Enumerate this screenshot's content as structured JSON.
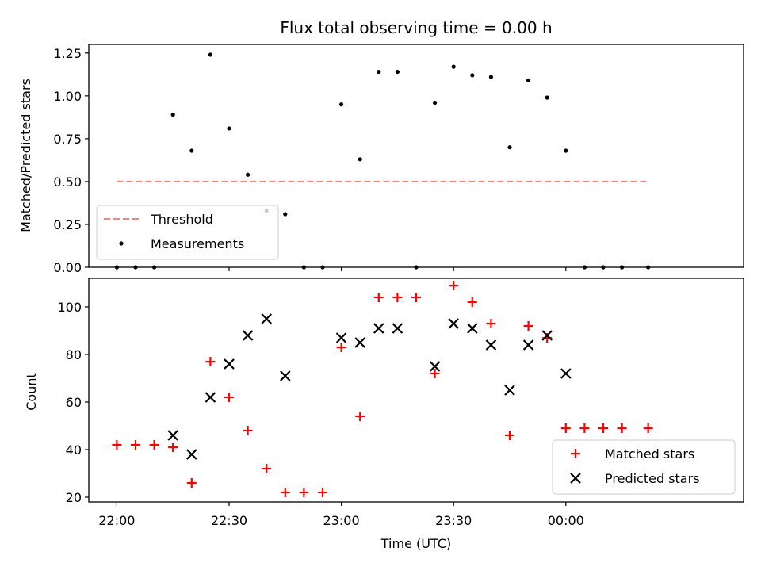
{
  "chart_data": [
    {
      "type": "scatter",
      "title": "Flux total observing time = 0.00 h",
      "xlabel": "",
      "ylabel": "Matched/Predicted stars",
      "ylim": [
        0,
        1.3
      ],
      "yticks": [
        0.0,
        0.25,
        0.5,
        0.75,
        1.0,
        1.25
      ],
      "ytick_labels": [
        "0.00",
        "0.25",
        "0.50",
        "0.75",
        "1.00",
        "1.25"
      ],
      "xlim_minutes": [
        -7.5,
        167.5
      ],
      "legend_position": "lower-left",
      "threshold": {
        "name": "Threshold",
        "y": 0.5,
        "x_from": "22:00",
        "x_to": "00:22",
        "color": "#ff7f7f"
      },
      "series": [
        {
          "name": "Measurements",
          "color": "#000000",
          "x": [
            "22:00",
            "22:05",
            "22:10",
            "22:15",
            "22:20",
            "22:25",
            "22:30",
            "22:35",
            "22:40",
            "22:45",
            "22:50",
            "22:55",
            "23:00",
            "23:05",
            "23:10",
            "23:15",
            "23:20",
            "23:25",
            "23:30",
            "23:35",
            "23:40",
            "23:45",
            "23:50",
            "23:55",
            "00:00",
            "00:05",
            "00:10",
            "00:15",
            "00:22"
          ],
          "y": [
            0,
            0,
            0,
            0.89,
            0.68,
            1.24,
            0.81,
            0.54,
            0.33,
            0.31,
            0,
            0,
            0.95,
            0.63,
            1.14,
            1.14,
            0,
            0.96,
            1.17,
            1.12,
            1.11,
            0.7,
            1.09,
            0.99,
            0.68,
            0,
            0,
            0,
            0
          ]
        }
      ]
    },
    {
      "type": "scatter",
      "title": "",
      "xlabel": "Time (UTC)",
      "ylabel": "Count",
      "ylim": [
        18,
        112
      ],
      "yticks": [
        20,
        40,
        60,
        80,
        100
      ],
      "ytick_labels": [
        "20",
        "40",
        "60",
        "80",
        "100"
      ],
      "xticks": [
        "22:00",
        "22:30",
        "23:00",
        "23:30",
        "00:00"
      ],
      "legend_position": "lower-right",
      "series": [
        {
          "name": "Matched stars",
          "marker": "plus",
          "color": "#ff0000",
          "x": [
            "22:00",
            "22:05",
            "22:10",
            "22:15",
            "22:20",
            "22:25",
            "22:30",
            "22:35",
            "22:40",
            "22:45",
            "22:50",
            "22:55",
            "23:00",
            "23:05",
            "23:10",
            "23:15",
            "23:20",
            "23:25",
            "23:30",
            "23:35",
            "23:40",
            "23:45",
            "23:50",
            "23:55",
            "00:00",
            "00:05",
            "00:10",
            "00:15",
            "00:22"
          ],
          "y": [
            42,
            42,
            42,
            41,
            26,
            77,
            62,
            48,
            32,
            22,
            22,
            22,
            83,
            54,
            104,
            104,
            104,
            72,
            109,
            102,
            93,
            46,
            92,
            87,
            49,
            49,
            49,
            49,
            49
          ]
        },
        {
          "name": "Predicted stars",
          "marker": "x",
          "color": "#000000",
          "x": [
            "22:15",
            "22:20",
            "22:25",
            "22:30",
            "22:35",
            "22:40",
            "22:45",
            "23:00",
            "23:05",
            "23:10",
            "23:15",
            "23:25",
            "23:30",
            "23:35",
            "23:40",
            "23:45",
            "23:50",
            "23:55",
            "00:00"
          ],
          "y": [
            46,
            38,
            62,
            76,
            88,
            95,
            71,
            87,
            85,
            91,
            91,
            75,
            93,
            91,
            84,
            65,
            84,
            88,
            72
          ]
        }
      ]
    }
  ]
}
